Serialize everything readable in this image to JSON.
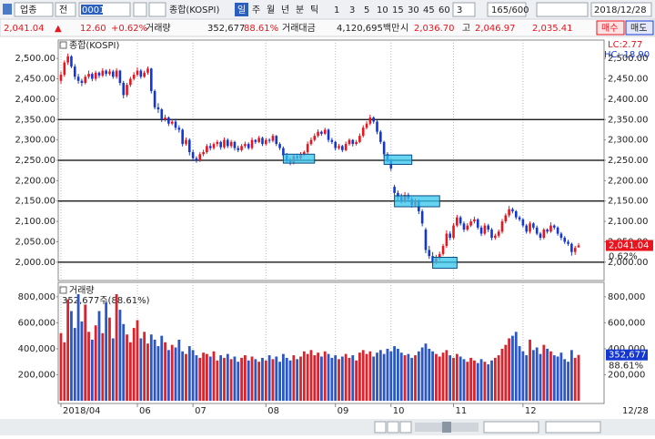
{
  "toolbar": {
    "market": "업종",
    "mode": "전",
    "code": "0001",
    "name": "종합(KOSPI)",
    "periods": [
      "일",
      "주",
      "월",
      "년",
      "분",
      "틱"
    ],
    "intervals": [
      "1",
      "3",
      "5",
      "10",
      "15",
      "30",
      "45",
      "60"
    ],
    "count": "3",
    "range": "165/600",
    "date": "2018/12/28"
  },
  "info": {
    "price": "2,041.04",
    "arrow": "▲",
    "change": "12.60",
    "change_pct": "+0.62%",
    "volume_label": "거래량",
    "volume": "352,677",
    "volume_ratio": "88.61%",
    "amount_label": "거래대금",
    "amount": "4,120,695백만",
    "open_label": "시",
    "open": "2,036.70",
    "high_label": "고",
    "high": "2,046.97",
    "low": "2,035.41",
    "buy": "매수",
    "sell": "매도"
  },
  "chart_data": [
    {
      "type": "candlestick",
      "title": "종합(KOSPI)",
      "up_color": "#e8141e",
      "down_color": "#1437d2",
      "ylim": [
        1955,
        2545
      ],
      "yticks": [
        {
          "value": 2000,
          "label": "2,000.00"
        },
        {
          "value": 2050,
          "label": "2,050.00"
        },
        {
          "value": 2100,
          "label": "2,100.00"
        },
        {
          "value": 2150,
          "label": "2,150.00"
        },
        {
          "value": 2200,
          "label": "2,200.00"
        },
        {
          "value": 2250,
          "label": "2,250.00"
        },
        {
          "value": 2300,
          "label": "2,300.00"
        },
        {
          "value": 2350,
          "label": "2,350.00"
        },
        {
          "value": 2400,
          "label": "2,400.00"
        },
        {
          "value": 2450,
          "label": "2,450.00"
        },
        {
          "value": 2500,
          "label": "2,500.00"
        }
      ],
      "lc": "LC:2.77",
      "hc": "HC:-18.90",
      "last_label": "2,041.04",
      "last_pct": "0.62%",
      "hlines": [
        2350,
        2250,
        2150,
        2000
      ],
      "boxes": [
        {
          "x": [
            64,
            73
          ],
          "y": [
            2243,
            2265
          ]
        },
        {
          "x": [
            93,
            101
          ],
          "y": [
            2240,
            2263
          ]
        },
        {
          "x": [
            96,
            109
          ],
          "y": [
            2136,
            2163
          ]
        },
        {
          "x": [
            107,
            114
          ],
          "y": [
            1985,
            2012
          ]
        }
      ],
      "open": [
        2445,
        2460,
        2490,
        2505,
        2480,
        2455,
        2445,
        2440,
        2455,
        2462,
        2450,
        2465,
        2458,
        2470,
        2462,
        2468,
        2455,
        2470,
        2440,
        2410,
        2435,
        2450,
        2460,
        2470,
        2455,
        2465,
        2475,
        2420,
        2380,
        2375,
        2350,
        2355,
        2340,
        2345,
        2330,
        2325,
        2290,
        2300,
        2270,
        2255,
        2250,
        2265,
        2270,
        2285,
        2280,
        2290,
        2295,
        2282,
        2300,
        2285,
        2295,
        2280,
        2275,
        2285,
        2290,
        2280,
        2300,
        2295,
        2305,
        2290,
        2300,
        2298,
        2310,
        2290,
        2280,
        2262,
        2250,
        2245,
        2260,
        2255,
        2265,
        2270,
        2290,
        2300,
        2310,
        2320,
        2315,
        2325,
        2300,
        2295,
        2280,
        2285,
        2275,
        2290,
        2300,
        2290,
        2295,
        2310,
        2330,
        2340,
        2355,
        2345,
        2320,
        2295,
        2265,
        2250,
        2185,
        2170,
        2160,
        2150,
        2165,
        2155,
        2140,
        2150,
        2125,
        2080,
        2030,
        2015,
        2000,
        2010,
        2020,
        2040,
        2070,
        2060,
        2090,
        2110,
        2095,
        2080,
        2090,
        2100,
        2105,
        2085,
        2070,
        2090,
        2080,
        2060,
        2065,
        2075,
        2100,
        2115,
        2130,
        2125,
        2110,
        2105,
        2090,
        2075,
        2095,
        2085,
        2070,
        2060,
        2080,
        2075,
        2090,
        2085,
        2070,
        2060,
        2050,
        2045,
        2025,
        2036.7
      ],
      "high": [
        2468,
        2495,
        2512,
        2508,
        2486,
        2462,
        2450,
        2460,
        2470,
        2466,
        2470,
        2468,
        2476,
        2473,
        2474,
        2472,
        2476,
        2472,
        2445,
        2440,
        2455,
        2466,
        2478,
        2474,
        2470,
        2480,
        2477,
        2424,
        2390,
        2378,
        2362,
        2358,
        2350,
        2352,
        2336,
        2328,
        2306,
        2304,
        2276,
        2260,
        2270,
        2276,
        2290,
        2292,
        2294,
        2300,
        2298,
        2306,
        2304,
        2300,
        2298,
        2286,
        2290,
        2296,
        2294,
        2306,
        2302,
        2310,
        2308,
        2305,
        2304,
        2315,
        2312,
        2294,
        2284,
        2268,
        2256,
        2264,
        2266,
        2270,
        2274,
        2296,
        2306,
        2316,
        2326,
        2323,
        2330,
        2328,
        2305,
        2298,
        2290,
        2288,
        2296,
        2304,
        2302,
        2300,
        2316,
        2336,
        2346,
        2362,
        2358,
        2348,
        2324,
        2298,
        2270,
        2254,
        2190,
        2176,
        2168,
        2172,
        2170,
        2160,
        2156,
        2154,
        2130,
        2085,
        2040,
        2025,
        2018,
        2026,
        2045,
        2078,
        2076,
        2096,
        2116,
        2114,
        2100,
        2096,
        2106,
        2112,
        2108,
        2090,
        2096,
        2094,
        2084,
        2070,
        2080,
        2106,
        2120,
        2138,
        2134,
        2128,
        2114,
        2108,
        2094,
        2100,
        2098,
        2090,
        2074,
        2084,
        2083,
        2098,
        2093,
        2088,
        2074,
        2064,
        2055,
        2048,
        2040,
        2046.97
      ],
      "low": [
        2438,
        2455,
        2484,
        2476,
        2448,
        2438,
        2432,
        2436,
        2450,
        2444,
        2445,
        2452,
        2454,
        2456,
        2458,
        2450,
        2450,
        2434,
        2402,
        2405,
        2430,
        2446,
        2455,
        2450,
        2452,
        2460,
        2414,
        2375,
        2366,
        2344,
        2345,
        2334,
        2336,
        2324,
        2318,
        2284,
        2286,
        2262,
        2248,
        2244,
        2246,
        2260,
        2266,
        2274,
        2276,
        2284,
        2276,
        2278,
        2280,
        2280,
        2274,
        2270,
        2271,
        2280,
        2276,
        2276,
        2290,
        2292,
        2285,
        2286,
        2292,
        2294,
        2285,
        2275,
        2256,
        2244,
        2238,
        2240,
        2250,
        2250,
        2260,
        2266,
        2286,
        2296,
        2306,
        2310,
        2312,
        2294,
        2290,
        2274,
        2276,
        2270,
        2272,
        2286,
        2284,
        2286,
        2292,
        2306,
        2326,
        2336,
        2340,
        2314,
        2290,
        2258,
        2244,
        2224,
        2164,
        2152,
        2144,
        2145,
        2148,
        2134,
        2136,
        2118,
        2088,
        2022,
        2008,
        1992,
        1995,
        2005,
        2016,
        2035,
        2054,
        2056,
        2086,
        2090,
        2074,
        2076,
        2086,
        2095,
        2080,
        2064,
        2066,
        2074,
        2054,
        2055,
        2060,
        2070,
        2095,
        2110,
        2120,
        2105,
        2100,
        2085,
        2070,
        2070,
        2080,
        2066,
        2054,
        2056,
        2070,
        2072,
        2080,
        2065,
        2054,
        2045,
        2040,
        2016,
        2018,
        2035.41
      ],
      "close": [
        2460,
        2490,
        2505,
        2480,
        2455,
        2445,
        2440,
        2455,
        2462,
        2450,
        2465,
        2458,
        2470,
        2462,
        2468,
        2455,
        2470,
        2440,
        2410,
        2435,
        2450,
        2460,
        2470,
        2455,
        2465,
        2475,
        2420,
        2380,
        2375,
        2350,
        2355,
        2340,
        2345,
        2330,
        2325,
        2290,
        2300,
        2270,
        2255,
        2250,
        2265,
        2270,
        2285,
        2280,
        2290,
        2295,
        2282,
        2300,
        2285,
        2295,
        2280,
        2275,
        2285,
        2290,
        2280,
        2300,
        2295,
        2305,
        2290,
        2300,
        2298,
        2310,
        2290,
        2280,
        2262,
        2250,
        2245,
        2260,
        2255,
        2265,
        2270,
        2290,
        2300,
        2310,
        2320,
        2315,
        2325,
        2300,
        2295,
        2280,
        2285,
        2275,
        2290,
        2300,
        2290,
        2295,
        2310,
        2330,
        2340,
        2355,
        2345,
        2320,
        2295,
        2265,
        2250,
        2230,
        2170,
        2160,
        2150,
        2165,
        2155,
        2140,
        2150,
        2125,
        2095,
        2030,
        2015,
        2000,
        2010,
        2020,
        2040,
        2070,
        2060,
        2090,
        2110,
        2095,
        2080,
        2090,
        2100,
        2105,
        2085,
        2070,
        2090,
        2080,
        2060,
        2065,
        2075,
        2100,
        2115,
        2130,
        2125,
        2110,
        2105,
        2090,
        2075,
        2095,
        2085,
        2070,
        2060,
        2080,
        2075,
        2090,
        2085,
        2070,
        2060,
        2050,
        2045,
        2025,
        2035,
        2041.04
      ]
    },
    {
      "type": "bar",
      "title": "거래량",
      "legend": "352,677주(88.61%)",
      "up_color": "#d8242c",
      "down_color": "#2a56c6",
      "ylim": [
        0,
        911000
      ],
      "yticks": [
        {
          "value": 200000,
          "label": "200,000"
        },
        {
          "value": 400000,
          "label": "400,000"
        },
        {
          "value": 600000,
          "label": "600,000"
        },
        {
          "value": 800000,
          "label": "800,000"
        }
      ],
      "last_label": "352,677",
      "last_pct": "88.61%",
      "x_labels": [
        {
          "value": 0,
          "label": "2018/04"
        },
        {
          "value": 22,
          "label": "06"
        },
        {
          "value": 38,
          "label": "07"
        },
        {
          "value": 59,
          "label": "08"
        },
        {
          "value": 79,
          "label": "09"
        },
        {
          "value": 95,
          "label": "10"
        },
        {
          "value": 113,
          "label": "11"
        },
        {
          "value": 133,
          "label": "12"
        }
      ],
      "x_end_label": "12/28",
      "values": [
        520000,
        450000,
        780000,
        690000,
        560000,
        820000,
        610000,
        740000,
        530000,
        470000,
        580000,
        690000,
        520000,
        760000,
        640000,
        480000,
        820000,
        700000,
        590000,
        510000,
        450000,
        560000,
        620000,
        480000,
        530000,
        440000,
        510000,
        470000,
        420000,
        500000,
        450000,
        390000,
        430000,
        410000,
        470000,
        380000,
        360000,
        420000,
        390000,
        350000,
        330000,
        370000,
        360000,
        340000,
        380000,
        310000,
        350000,
        330000,
        360000,
        320000,
        340000,
        300000,
        330000,
        350000,
        310000,
        340000,
        320000,
        300000,
        330000,
        310000,
        350000,
        320000,
        340000,
        300000,
        360000,
        330000,
        310000,
        350000,
        320000,
        340000,
        380000,
        360000,
        390000,
        350000,
        370000,
        340000,
        380000,
        360000,
        330000,
        350000,
        320000,
        340000,
        360000,
        330000,
        350000,
        310000,
        370000,
        390000,
        360000,
        380000,
        340000,
        370000,
        390000,
        360000,
        400000,
        380000,
        420000,
        400000,
        370000,
        350000,
        360000,
        330000,
        350000,
        380000,
        410000,
        440000,
        400000,
        380000,
        360000,
        340000,
        370000,
        390000,
        350000,
        330000,
        360000,
        340000,
        320000,
        300000,
        330000,
        310000,
        290000,
        320000,
        300000,
        280000,
        310000,
        330000,
        350000,
        400000,
        430000,
        480000,
        500000,
        530000,
        420000,
        380000,
        350000,
        470000,
        390000,
        410000,
        360000,
        430000,
        400000,
        380000,
        350000,
        340000,
        370000,
        320000,
        300000,
        390000,
        330000,
        352677
      ]
    }
  ]
}
